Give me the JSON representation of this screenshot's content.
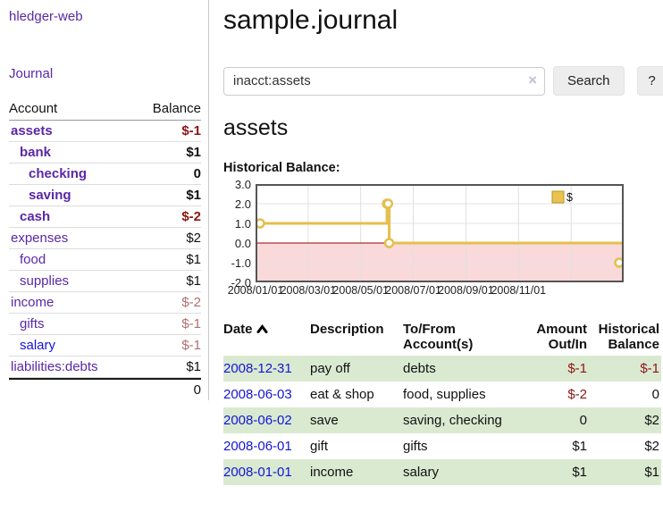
{
  "app": {
    "title": "hledger-web"
  },
  "sidebar": {
    "journal_link": "Journal",
    "table": {
      "headers": {
        "account": "Account",
        "balance": "Balance"
      },
      "rows": [
        {
          "account": "assets",
          "balance": "$-1",
          "depth": 1,
          "bold": true,
          "negative": "strong",
          "unvisited": false
        },
        {
          "account": "bank",
          "balance": "$1",
          "depth": 2,
          "bold": true,
          "negative": "none",
          "unvisited": false
        },
        {
          "account": "checking",
          "balance": "0",
          "depth": 3,
          "bold": true,
          "negative": "none",
          "unvisited": false
        },
        {
          "account": "saving",
          "balance": "$1",
          "depth": 3,
          "bold": true,
          "negative": "none",
          "unvisited": false
        },
        {
          "account": "cash",
          "balance": "$-2",
          "depth": 2,
          "bold": true,
          "negative": "strong",
          "unvisited": false
        },
        {
          "account": "expenses",
          "balance": "$2",
          "depth": 1,
          "bold": false,
          "negative": "none",
          "unvisited": false
        },
        {
          "account": "food",
          "balance": "$1",
          "depth": 2,
          "bold": false,
          "negative": "none",
          "unvisited": false
        },
        {
          "account": "supplies",
          "balance": "$1",
          "depth": 2,
          "bold": false,
          "negative": "none",
          "unvisited": false
        },
        {
          "account": "income",
          "balance": "$-2",
          "depth": 1,
          "bold": false,
          "negative": "weak",
          "unvisited": false
        },
        {
          "account": "gifts",
          "balance": "$-1",
          "depth": 2,
          "bold": false,
          "negative": "weak",
          "unvisited": false
        },
        {
          "account": "salary",
          "balance": "$-1",
          "depth": 2,
          "bold": false,
          "negative": "weak",
          "unvisited": true
        },
        {
          "account": "liabilities:debts",
          "balance": "$1",
          "depth": 1,
          "bold": false,
          "negative": "none",
          "unvisited": false
        }
      ],
      "total": "0"
    }
  },
  "header": {
    "title": "sample.journal"
  },
  "search": {
    "value": "inacct:assets",
    "clear_icon": "×",
    "button": "Search",
    "help_button": "?"
  },
  "account_page": {
    "title": "assets",
    "chart_label": "Historical Balance:"
  },
  "chart_data": {
    "type": "line",
    "step": true,
    "title": "Historical Balance:",
    "legend": [
      {
        "label": "$",
        "color": "#e9c351"
      }
    ],
    "legend_position": "top-right",
    "series": [
      {
        "name": "$",
        "points": [
          {
            "date": "2008-01-01",
            "value": 1
          },
          {
            "date": "2008-06-01",
            "value": 2
          },
          {
            "date": "2008-06-02",
            "value": 2
          },
          {
            "date": "2008-06-03",
            "value": 0
          },
          {
            "date": "2008-12-31",
            "value": -1
          }
        ],
        "x_fractions": [
          0,
          0.357,
          0.36,
          0.363,
          1.0
        ]
      }
    ],
    "ylim": [
      -2,
      3
    ],
    "yticks": [
      3.0,
      2.0,
      1.0,
      0.0,
      -1.0,
      -2.0
    ],
    "ytick_labels": [
      "3.0",
      "2.0",
      "1.0",
      "0.0",
      "-1.0",
      "-2.0"
    ],
    "xtick_labels": [
      "2008/01/01",
      "2008/03/01",
      "2008/05/01",
      "2008/07/01",
      "2008/09/01",
      "2008/11/01"
    ],
    "grid": true,
    "line_color": "#e5bf4d",
    "marker_fill": "#ffffff",
    "negative_region_color": "#f9d9d9",
    "zero_line_color": "#990000",
    "border_color": "#555555"
  },
  "register": {
    "headers": {
      "date": "Date",
      "description": "Description",
      "accounts": "To/From Account(s)",
      "amount": "Amount Out/In",
      "balance": "Historical Balance"
    },
    "rows": [
      {
        "date": "2008-12-31",
        "description": "pay off",
        "accounts": "debts",
        "amount": "$-1",
        "amount_negative": true,
        "balance": "$-1",
        "balance_negative": true
      },
      {
        "date": "2008-06-03",
        "description": "eat & shop",
        "accounts": "food, supplies",
        "amount": "$-2",
        "amount_negative": true,
        "balance": "0",
        "balance_negative": false
      },
      {
        "date": "2008-06-02",
        "description": "save",
        "accounts": "saving, checking",
        "amount": "0",
        "amount_negative": false,
        "balance": "$2",
        "balance_negative": false
      },
      {
        "date": "2008-06-01",
        "description": "gift",
        "accounts": "gifts",
        "amount": "$1",
        "amount_negative": false,
        "balance": "$2",
        "balance_negative": false
      },
      {
        "date": "2008-01-01",
        "description": "income",
        "accounts": "salary",
        "amount": "$1",
        "amount_negative": false,
        "balance": "$1",
        "balance_negative": false
      }
    ]
  }
}
